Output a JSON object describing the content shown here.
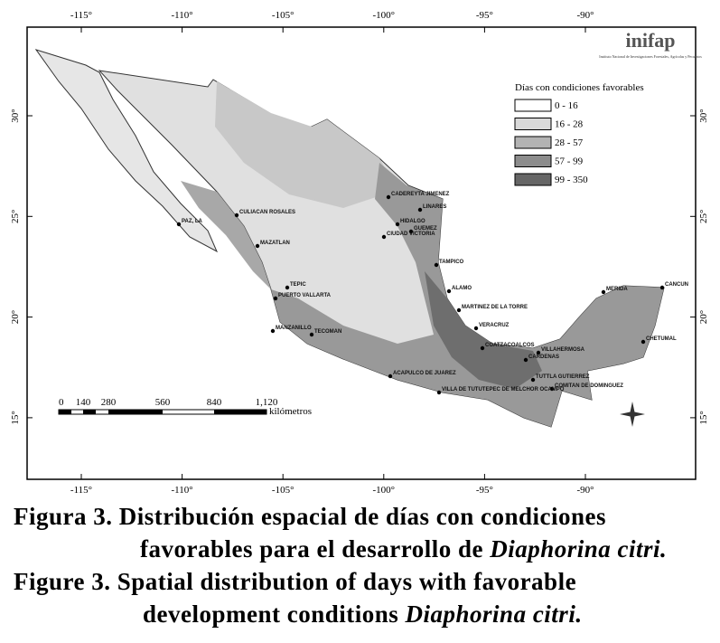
{
  "logo": {
    "name": "inifap",
    "subtitle": "Instituto Nacional de Investigaciones Forestales, Agrícolas y Pecuarios"
  },
  "map": {
    "lon_ticks": [
      "-115°",
      "-110°",
      "-105°",
      "-100°",
      "-95°",
      "-90°"
    ],
    "lat_ticks": [
      "30°",
      "25°",
      "20°",
      "15°"
    ],
    "legend": {
      "title": "Días con condiciones favorables",
      "items": [
        {
          "label": "0 - 16",
          "color": "#ffffff"
        },
        {
          "label": "16 - 28",
          "color": "#d9d9d9"
        },
        {
          "label": "28 - 57",
          "color": "#b3b3b3"
        },
        {
          "label": "57 - 99",
          "color": "#8c8c8c"
        },
        {
          "label": "99 - 350",
          "color": "#666666"
        }
      ]
    },
    "scale": {
      "labels": [
        "0",
        "140",
        "280",
        "560",
        "840",
        "1,120"
      ],
      "unit": "kilómetros"
    },
    "cities": [
      "CULIACAN ROSALES",
      "PAZ, LA",
      "MAZATLAN",
      "TEPIC",
      "PUERTO VALLARTA",
      "MANZANILLO",
      "TECOMAN",
      "CADEREYTA JIMENEZ",
      "LINARES",
      "HIDALGO",
      "GUEMEZ",
      "CIUDAD VICTORIA",
      "TAMPICO",
      "ALAMO",
      "MARTINEZ DE LA TORRE",
      "VERACRUZ",
      "COATZACOALCOS",
      "VILLAHERMOSA",
      "CARDENAS",
      "TUTTLA GUTIERREZ",
      "COMITAN DE DOMINGUEZ",
      "ACAPULCO DE JUAREZ",
      "VILLA DE TUTUTEPEC DE MELCHOR OCAMPO",
      "MERIDA",
      "CANCUN",
      "CHETUMAL"
    ]
  },
  "caption": {
    "es_line1": "Figura 3. Distribución espacial de días con condiciones",
    "es_line2": "favorables para el desarrollo de",
    "es_species": "Diaphorina citri.",
    "en_line1": "Figure 3. Spatial distribution of days with favorable",
    "en_line2": "development conditions",
    "en_species": "Diaphorina citri."
  }
}
